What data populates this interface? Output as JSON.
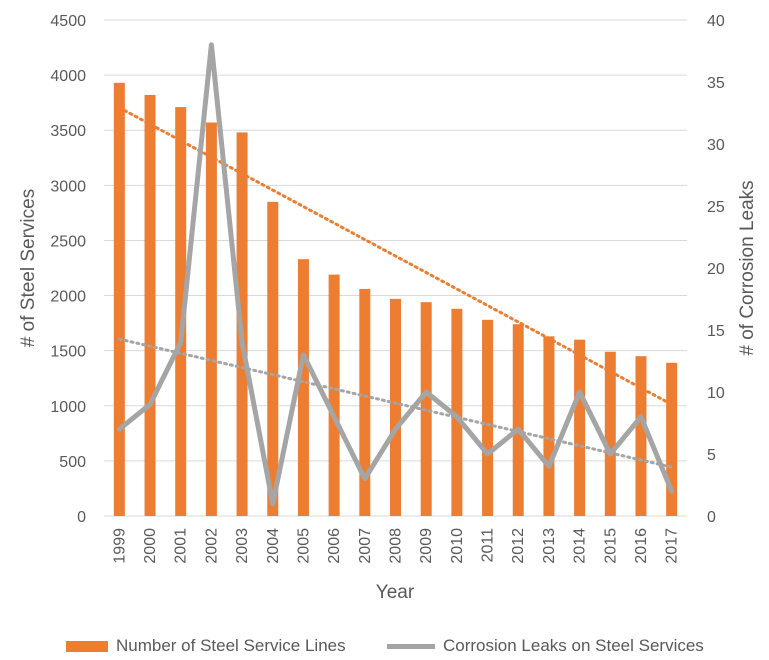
{
  "chart_data": {
    "type": "bar",
    "title": "",
    "xlabel": "Year",
    "ylabel": "# of Steel Services",
    "y2label": "# of Corrosion Leaks",
    "ylim": [
      0,
      4500
    ],
    "y2lim": [
      0,
      40
    ],
    "yticks": [
      0,
      500,
      1000,
      1500,
      2000,
      2500,
      3000,
      3500,
      4000,
      4500
    ],
    "y2ticks": [
      0,
      5,
      10,
      15,
      20,
      25,
      30,
      35,
      40
    ],
    "grid": "horizontal",
    "legend_position": "bottom",
    "categories": [
      "1999",
      "2000",
      "2001",
      "2002",
      "2003",
      "2004",
      "2005",
      "2006",
      "2007",
      "2008",
      "2009",
      "2010",
      "2011",
      "2012",
      "2013",
      "2014",
      "2015",
      "2016",
      "2017"
    ],
    "series": [
      {
        "name": "Number of Steel Service Lines",
        "type": "bar",
        "axis": "left",
        "color": "#ED7D31",
        "values": [
          3930,
          3820,
          3710,
          3570,
          3480,
          2850,
          2330,
          2190,
          2060,
          1970,
          1940,
          1880,
          1780,
          1740,
          1630,
          1600,
          1490,
          1450,
          1390
        ],
        "trendline": {
          "type": "linear",
          "style": "dotted",
          "color": "#ED7D31"
        }
      },
      {
        "name": "Corrosion Leaks on Steel Services",
        "type": "line",
        "axis": "right",
        "color": "#A5A5A5",
        "values": [
          7,
          9,
          14,
          38,
          14,
          1,
          13,
          8,
          3,
          7,
          10,
          8,
          5,
          7,
          4,
          10,
          5,
          8,
          2
        ],
        "trendline": {
          "type": "linear",
          "style": "dotted",
          "color": "#A5A5A5"
        }
      }
    ]
  },
  "colors": {
    "grid": "#D9D9D9",
    "text": "#595959",
    "bar": "#ED7D31",
    "line": "#A5A5A5"
  }
}
